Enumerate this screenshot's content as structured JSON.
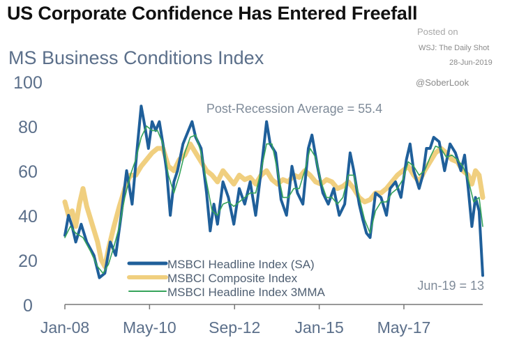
{
  "header": {
    "title": "US Corporate Confidence Has Entered Freefall",
    "subtitle": "MS Business Conditions Index"
  },
  "source": {
    "posted": "Posted on",
    "outlet": "WSJ: The Daily Shot",
    "date": "28-Jun-2019",
    "handle": "@SoberLook"
  },
  "colors": {
    "headline_sa": "#1f5f9a",
    "composite": "#f0cf7f",
    "mma3": "#35a35a",
    "axis": "#777777",
    "annotation_text": "#7f8b99"
  },
  "chart_data": {
    "type": "line",
    "title": "MS Business Conditions Index",
    "xlabel": "",
    "ylabel": "",
    "ylim": [
      0,
      100
    ],
    "yticks": [
      0,
      20,
      40,
      60,
      80,
      100
    ],
    "x_range": [
      2008.0,
      2019.5
    ],
    "xticks": [
      {
        "label": "Jan-08",
        "t": 2008.0
      },
      {
        "label": "May-10",
        "t": 2010.33
      },
      {
        "label": "Sep-12",
        "t": 2012.67
      },
      {
        "label": "Jan-15",
        "t": 2015.0
      },
      {
        "label": "May-17",
        "t": 2017.33
      }
    ],
    "annotations": {
      "average": "Post-Recession Average = 55.4",
      "latest": "Jun-19 = 13"
    },
    "legend_position": "bottom-left",
    "series": [
      {
        "name": "MSBCI Headline Index (SA)",
        "color_key": "headline_sa",
        "points": [
          [
            2008.0,
            31
          ],
          [
            2008.1,
            40
          ],
          [
            2008.2,
            35
          ],
          [
            2008.3,
            28
          ],
          [
            2008.45,
            36
          ],
          [
            2008.6,
            28
          ],
          [
            2008.8,
            22
          ],
          [
            2008.95,
            12
          ],
          [
            2009.1,
            14
          ],
          [
            2009.25,
            28
          ],
          [
            2009.4,
            22
          ],
          [
            2009.55,
            40
          ],
          [
            2009.7,
            60
          ],
          [
            2009.85,
            45
          ],
          [
            2010.0,
            72
          ],
          [
            2010.1,
            89
          ],
          [
            2010.2,
            80
          ],
          [
            2010.3,
            70
          ],
          [
            2010.4,
            82
          ],
          [
            2010.5,
            78
          ],
          [
            2010.6,
            82
          ],
          [
            2010.7,
            72
          ],
          [
            2010.8,
            60
          ],
          [
            2010.9,
            40
          ],
          [
            2011.0,
            55
          ],
          [
            2011.1,
            60
          ],
          [
            2011.25,
            72
          ],
          [
            2011.4,
            78
          ],
          [
            2011.5,
            82
          ],
          [
            2011.6,
            75
          ],
          [
            2011.75,
            70
          ],
          [
            2011.9,
            50
          ],
          [
            2012.0,
            33
          ],
          [
            2012.1,
            45
          ],
          [
            2012.2,
            36
          ],
          [
            2012.35,
            55
          ],
          [
            2012.5,
            48
          ],
          [
            2012.65,
            36
          ],
          [
            2012.8,
            52
          ],
          [
            2012.95,
            45
          ],
          [
            2013.1,
            55
          ],
          [
            2013.25,
            40
          ],
          [
            2013.4,
            60
          ],
          [
            2013.55,
            82
          ],
          [
            2013.65,
            72
          ],
          [
            2013.8,
            68
          ],
          [
            2013.95,
            47
          ],
          [
            2014.1,
            40
          ],
          [
            2014.25,
            62
          ],
          [
            2014.4,
            50
          ],
          [
            2014.55,
            45
          ],
          [
            2014.7,
            70
          ],
          [
            2014.8,
            76
          ],
          [
            2014.95,
            62
          ],
          [
            2015.1,
            50
          ],
          [
            2015.25,
            45
          ],
          [
            2015.4,
            52
          ],
          [
            2015.55,
            40
          ],
          [
            2015.7,
            45
          ],
          [
            2015.85,
            68
          ],
          [
            2015.95,
            60
          ],
          [
            2016.1,
            45
          ],
          [
            2016.2,
            38
          ],
          [
            2016.3,
            32
          ],
          [
            2016.4,
            30
          ],
          [
            2016.55,
            50
          ],
          [
            2016.7,
            48
          ],
          [
            2016.85,
            40
          ],
          [
            2016.95,
            52
          ],
          [
            2017.1,
            55
          ],
          [
            2017.25,
            48
          ],
          [
            2017.4,
            65
          ],
          [
            2017.5,
            72
          ],
          [
            2017.6,
            60
          ],
          [
            2017.75,
            52
          ],
          [
            2017.85,
            58
          ],
          [
            2017.95,
            70
          ],
          [
            2018.05,
            70
          ],
          [
            2018.15,
            75
          ],
          [
            2018.3,
            73
          ],
          [
            2018.45,
            60
          ],
          [
            2018.6,
            72
          ],
          [
            2018.75,
            68
          ],
          [
            2018.9,
            60
          ],
          [
            2019.0,
            67
          ],
          [
            2019.1,
            52
          ],
          [
            2019.2,
            35
          ],
          [
            2019.3,
            48
          ],
          [
            2019.4,
            42
          ],
          [
            2019.5,
            13
          ]
        ]
      },
      {
        "name": "MSBCI Composite Index",
        "color_key": "composite",
        "points": [
          [
            2008.0,
            46
          ],
          [
            2008.1,
            40
          ],
          [
            2008.2,
            42
          ],
          [
            2008.3,
            35
          ],
          [
            2008.4,
            45
          ],
          [
            2008.5,
            52
          ],
          [
            2008.6,
            44
          ],
          [
            2008.75,
            36
          ],
          [
            2008.9,
            28
          ],
          [
            2009.0,
            20
          ],
          [
            2009.1,
            17
          ],
          [
            2009.2,
            25
          ],
          [
            2009.35,
            35
          ],
          [
            2009.5,
            44
          ],
          [
            2009.65,
            52
          ],
          [
            2009.8,
            58
          ],
          [
            2009.95,
            58
          ],
          [
            2010.1,
            62
          ],
          [
            2010.25,
            65
          ],
          [
            2010.4,
            68
          ],
          [
            2010.55,
            70
          ],
          [
            2010.7,
            70
          ],
          [
            2010.85,
            62
          ],
          [
            2011.0,
            60
          ],
          [
            2011.15,
            65
          ],
          [
            2011.3,
            67
          ],
          [
            2011.45,
            72
          ],
          [
            2011.6,
            68
          ],
          [
            2011.75,
            64
          ],
          [
            2011.9,
            60
          ],
          [
            2012.05,
            58
          ],
          [
            2012.2,
            55
          ],
          [
            2012.35,
            60
          ],
          [
            2012.5,
            57
          ],
          [
            2012.65,
            54
          ],
          [
            2012.8,
            58
          ],
          [
            2012.95,
            56
          ],
          [
            2013.1,
            57
          ],
          [
            2013.25,
            54
          ],
          [
            2013.4,
            58
          ],
          [
            2013.55,
            60
          ],
          [
            2013.7,
            56
          ],
          [
            2013.85,
            54
          ],
          [
            2014.0,
            56
          ],
          [
            2014.15,
            55
          ],
          [
            2014.3,
            58
          ],
          [
            2014.45,
            57
          ],
          [
            2014.6,
            60
          ],
          [
            2014.75,
            58
          ],
          [
            2014.9,
            55
          ],
          [
            2015.05,
            54
          ],
          [
            2015.2,
            56
          ],
          [
            2015.35,
            55
          ],
          [
            2015.5,
            52
          ],
          [
            2015.65,
            53
          ],
          [
            2015.8,
            55
          ],
          [
            2015.95,
            52
          ],
          [
            2016.1,
            48
          ],
          [
            2016.25,
            46
          ],
          [
            2016.4,
            47
          ],
          [
            2016.55,
            50
          ],
          [
            2016.7,
            50
          ],
          [
            2016.85,
            52
          ],
          [
            2017.0,
            55
          ],
          [
            2017.15,
            58
          ],
          [
            2017.3,
            60
          ],
          [
            2017.45,
            62
          ],
          [
            2017.6,
            58
          ],
          [
            2017.75,
            55
          ],
          [
            2017.9,
            60
          ],
          [
            2018.05,
            64
          ],
          [
            2018.2,
            68
          ],
          [
            2018.35,
            70
          ],
          [
            2018.5,
            68
          ],
          [
            2018.65,
            65
          ],
          [
            2018.8,
            64
          ],
          [
            2018.95,
            60
          ],
          [
            2019.1,
            58
          ],
          [
            2019.2,
            54
          ],
          [
            2019.3,
            60
          ],
          [
            2019.4,
            58
          ],
          [
            2019.5,
            48
          ]
        ]
      },
      {
        "name": "MSBCI Headline Index 3MMA",
        "color_key": "mma3",
        "points": [
          [
            2008.0,
            30
          ],
          [
            2008.15,
            35
          ],
          [
            2008.3,
            32
          ],
          [
            2008.5,
            30
          ],
          [
            2008.7,
            24
          ],
          [
            2008.9,
            17
          ],
          [
            2009.05,
            14
          ],
          [
            2009.2,
            18
          ],
          [
            2009.35,
            26
          ],
          [
            2009.5,
            35
          ],
          [
            2009.65,
            48
          ],
          [
            2009.8,
            58
          ],
          [
            2009.95,
            65
          ],
          [
            2010.1,
            75
          ],
          [
            2010.25,
            80
          ],
          [
            2010.4,
            78
          ],
          [
            2010.55,
            78
          ],
          [
            2010.7,
            72
          ],
          [
            2010.85,
            58
          ],
          [
            2011.0,
            50
          ],
          [
            2011.15,
            58
          ],
          [
            2011.3,
            68
          ],
          [
            2011.45,
            75
          ],
          [
            2011.6,
            76
          ],
          [
            2011.75,
            68
          ],
          [
            2011.9,
            55
          ],
          [
            2012.05,
            42
          ],
          [
            2012.2,
            40
          ],
          [
            2012.35,
            45
          ],
          [
            2012.5,
            46
          ],
          [
            2012.65,
            44
          ],
          [
            2012.8,
            46
          ],
          [
            2012.95,
            48
          ],
          [
            2013.1,
            50
          ],
          [
            2013.25,
            50
          ],
          [
            2013.4,
            60
          ],
          [
            2013.55,
            72
          ],
          [
            2013.7,
            72
          ],
          [
            2013.85,
            60
          ],
          [
            2014.0,
            48
          ],
          [
            2014.15,
            48
          ],
          [
            2014.3,
            52
          ],
          [
            2014.45,
            52
          ],
          [
            2014.6,
            60
          ],
          [
            2014.75,
            70
          ],
          [
            2014.9,
            66
          ],
          [
            2015.05,
            55
          ],
          [
            2015.2,
            48
          ],
          [
            2015.35,
            48
          ],
          [
            2015.5,
            45
          ],
          [
            2015.65,
            48
          ],
          [
            2015.8,
            58
          ],
          [
            2015.95,
            58
          ],
          [
            2016.1,
            48
          ],
          [
            2016.25,
            38
          ],
          [
            2016.4,
            32
          ],
          [
            2016.55,
            42
          ],
          [
            2016.7,
            46
          ],
          [
            2016.85,
            46
          ],
          [
            2017.0,
            50
          ],
          [
            2017.15,
            52
          ],
          [
            2017.3,
            56
          ],
          [
            2017.45,
            64
          ],
          [
            2017.6,
            62
          ],
          [
            2017.75,
            58
          ],
          [
            2017.9,
            60
          ],
          [
            2018.05,
            66
          ],
          [
            2018.2,
            71
          ],
          [
            2018.35,
            70
          ],
          [
            2018.5,
            66
          ],
          [
            2018.65,
            67
          ],
          [
            2018.8,
            65
          ],
          [
            2018.95,
            62
          ],
          [
            2019.1,
            56
          ],
          [
            2019.25,
            46
          ],
          [
            2019.4,
            48
          ],
          [
            2019.5,
            35
          ]
        ]
      }
    ]
  }
}
